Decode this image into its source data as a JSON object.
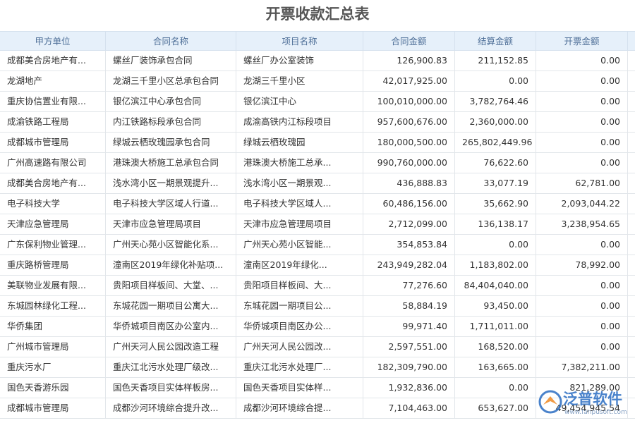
{
  "title": "开票收款汇总表",
  "table": {
    "headers": [
      "甲方单位",
      "合同名称",
      "项目名称",
      "合同金额",
      "结算金额",
      "开票金额"
    ],
    "rows": [
      [
        "成都美合房地产有...",
        "螺丝厂装饰承包合同",
        "螺丝厂办公室装饰",
        "126,900.83",
        "211,152.85",
        "0.00"
      ],
      [
        "龙湖地产",
        "龙湖三千里小区总承包合同",
        "龙湖三千里小区",
        "42,017,925.00",
        "0.00",
        "0.00"
      ],
      [
        "重庆协信置业有限...",
        "银亿滨江中心承包合同",
        "银亿滨江中心",
        "100,010,000.00",
        "3,782,764.46",
        "0.00"
      ],
      [
        "成渝铁路工程局",
        "内江铁路标段承包合同",
        "成渝高铁内江标段项目",
        "957,600,676.00",
        "2,360,000.00",
        "0.00"
      ],
      [
        "成都城市管理局",
        "绿城云栖玫瑰园承包合同",
        "绿城云栖玫瑰园",
        "180,000,500.00",
        "265,802,449.96",
        "0.00"
      ],
      [
        "广州高速路有限公司",
        "港珠澳大桥施工总承包合同",
        "港珠澳大桥施工总承...",
        "990,760,000.00",
        "76,622.60",
        "0.00"
      ],
      [
        "成都美合房地产有...",
        "浅水湾小区一期景观提升...",
        "浅水湾小区一期景观...",
        "436,888.83",
        "33,077.19",
        "62,781.00"
      ],
      [
        "电子科技大学",
        "电子科技大学区域人行道...",
        "电子科技大学区域人...",
        "60,486,156.00",
        "35,662.90",
        "2,093,044.22"
      ],
      [
        "天津应急管理局",
        "天津市应急管理局项目",
        "天津市应急管理局项目",
        "2,712,099.00",
        "136,138.17",
        "3,238,954.65"
      ],
      [
        "广东保利物业管理...",
        "广州天心苑小区智能化系...",
        "广州天心苑小区智能...",
        "354,853.84",
        "0.00",
        "0.00"
      ],
      [
        "重庆路桥管理局",
        "潼南区2019年绿化补贴项...",
        "潼南区2019年绿化...",
        "243,949,282.04",
        "1,183,802.00",
        "78,992.00"
      ],
      [
        "美联物业发展有限...",
        "贵阳项目样板间、大堂、...",
        "贵阳项目样板间、大...",
        "77,276.60",
        "84,404,040.00",
        "0.00"
      ],
      [
        "东城园林绿化工程...",
        "东城花园一期项目公寓大...",
        "东城花园一期项目公...",
        "58,884.19",
        "93,450.00",
        "0.00"
      ],
      [
        "华侨集团",
        "华侨城项目南区办公室内...",
        "华侨城项目南区办公...",
        "99,971.40",
        "1,711,011.00",
        "0.00"
      ],
      [
        "广州城市管理局",
        "广州天河人民公园改造工程",
        "广州天河人民公园改...",
        "2,597,551.00",
        "168,520.00",
        "0.00"
      ],
      [
        "重庆污水厂",
        "重庆江北污水处理厂级改...",
        "重庆江北污水处理厂...",
        "182,309,790.00",
        "163,665.00",
        "7,382,211.00"
      ],
      [
        "国色天香游乐园",
        "国色天香项目实体样板房...",
        "国色天香项目实体样...",
        "1,932,836.00",
        "0.00",
        "821,289.00"
      ],
      [
        "成都城市管理局",
        "成都沙河环境综合提升改...",
        "成都沙河环境综合提...",
        "7,104,463.00",
        "653,627.00",
        "49,454,945.54"
      ]
    ]
  },
  "watermark": {
    "brand": "泛普软件",
    "url": "www.fanpusoft.com"
  }
}
